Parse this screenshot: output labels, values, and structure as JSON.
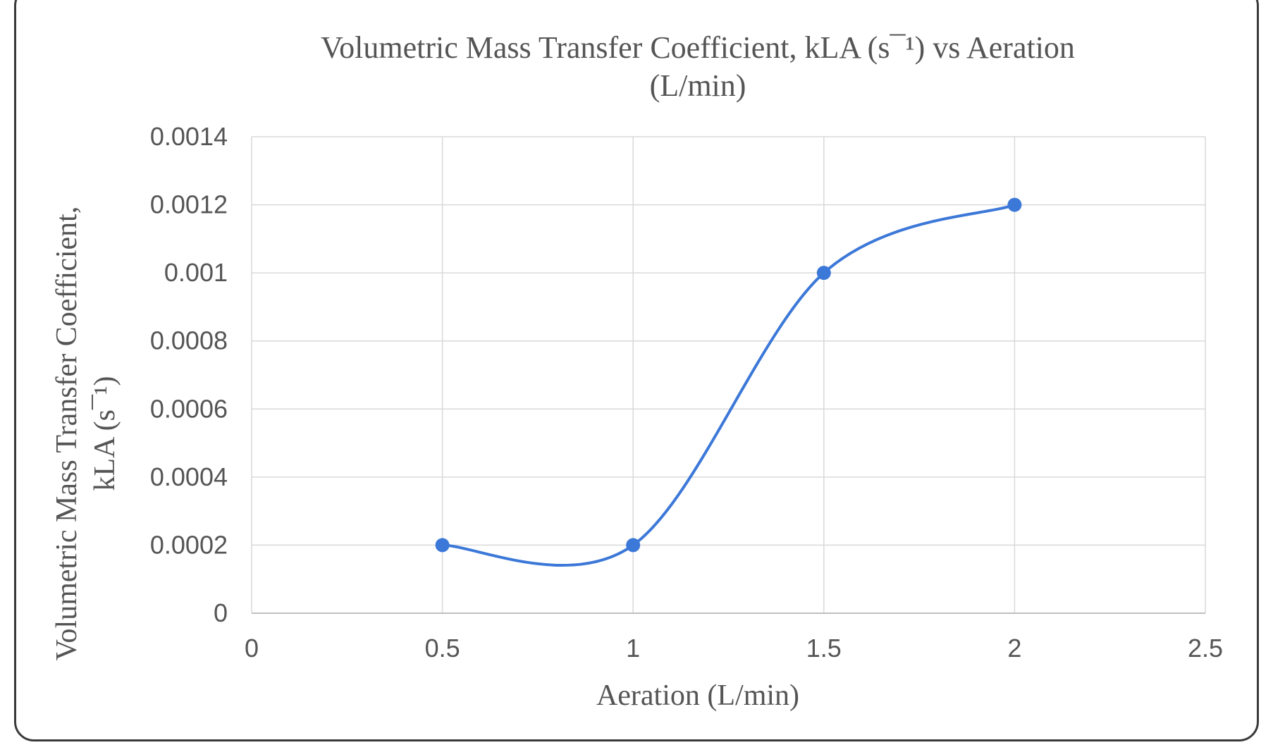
{
  "chart_data": {
    "type": "scatter",
    "title_lines": [
      "Volumetric Mass Transfer Coefficient, kLA (s¯¹) vs Aeration",
      "(L/min)"
    ],
    "xlabel": "Aeration (L/min)",
    "ylabel_lines": [
      "Volumetric Mass Transfer Coefficient,",
      "kLA (s¯¹)"
    ],
    "xlim": [
      0,
      2.5
    ],
    "ylim": [
      0,
      0.0014
    ],
    "x_ticks": [
      0,
      0.5,
      1,
      1.5,
      2,
      2.5
    ],
    "x_tick_labels": [
      "0",
      "0.5",
      "1",
      "1.5",
      "2",
      "2.5"
    ],
    "y_ticks": [
      0,
      0.0002,
      0.0004,
      0.0006,
      0.0008,
      0.001,
      0.0012,
      0.0014
    ],
    "y_tick_labels": [
      "0",
      "0.0002",
      "0.0004",
      "0.0006",
      "0.0008",
      "0.001",
      "0.0012",
      "0.0014"
    ],
    "grid": true,
    "line_style": "smooth",
    "series": [
      {
        "color": "#3c78d8",
        "x": [
          0.5,
          1,
          1.5,
          2
        ],
        "y": [
          0.0002,
          0.0002,
          0.001,
          0.0012
        ]
      }
    ]
  }
}
